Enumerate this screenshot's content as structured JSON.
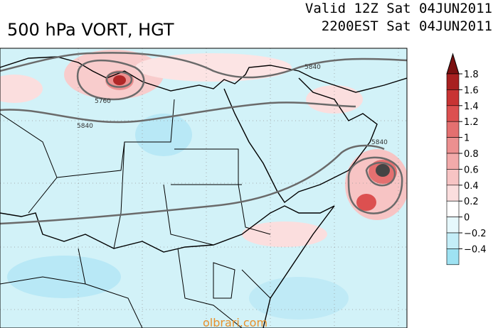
{
  "header": {
    "title": "500 hPa VORT, HGT",
    "valid_line_1": "Valid 12Z Sat 04JUN2011",
    "valid_line_2": "2200EST Sat 04JUN2011"
  },
  "map": {
    "contour_labels": [
      "5840",
      "5760",
      "5840",
      "5840"
    ],
    "watermark": "olbrari.com"
  },
  "colorbar": {
    "labels": [
      "1.8",
      "1.6",
      "1.4",
      "1.2",
      "1",
      "0.8",
      "0.6",
      "0.4",
      "0.2",
      "0",
      "−0.2",
      "−0.4"
    ],
    "colors": [
      "#7a1010",
      "#a82020",
      "#c83434",
      "#dc5050",
      "#e47070",
      "#ec9090",
      "#f2aaaa",
      "#f7c4c4",
      "#fbdede",
      "#ffffff",
      "#e6f8fc",
      "#c4eef8",
      "#9ee2f2"
    ]
  }
}
